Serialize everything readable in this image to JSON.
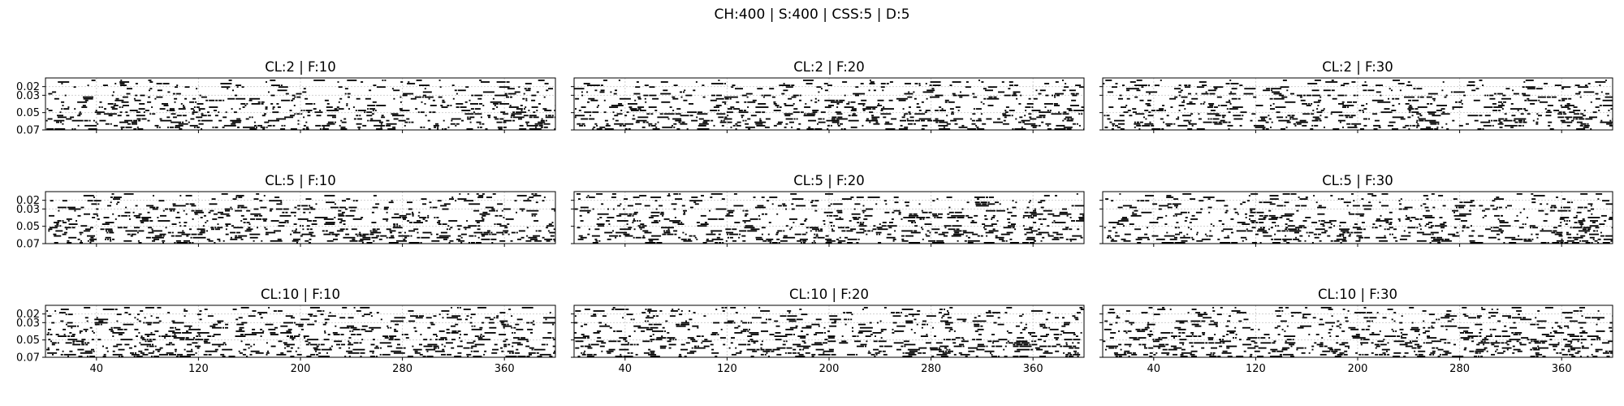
{
  "figure": {
    "suptitle": "CH:400 | S:400 | CSS:5 | D:5"
  },
  "chart_data": [
    {
      "type": "raster",
      "title": "CL:2 | F:10",
      "seed": 11,
      "xticks": [
        "40",
        "120",
        "200",
        "280",
        "360"
      ],
      "yticks": [
        "0.02",
        "0.03",
        "0.05",
        "0.07"
      ],
      "xlim": [
        0,
        400
      ],
      "ylim": [
        0.07,
        0.01
      ],
      "grid": true
    },
    {
      "type": "raster",
      "title": "CL:2 | F:20",
      "seed": 12,
      "xticks": [
        "40",
        "120",
        "200",
        "280",
        "360"
      ],
      "yticks": [
        "0.02",
        "0.03",
        "0.05",
        "0.07"
      ],
      "xlim": [
        0,
        400
      ],
      "ylim": [
        0.07,
        0.01
      ],
      "grid": true
    },
    {
      "type": "raster",
      "title": "CL:2 | F:30",
      "seed": 13,
      "xticks": [
        "40",
        "120",
        "200",
        "280",
        "360"
      ],
      "yticks": [
        "0.02",
        "0.03",
        "0.05",
        "0.07"
      ],
      "xlim": [
        0,
        400
      ],
      "ylim": [
        0.07,
        0.01
      ],
      "grid": true
    },
    {
      "type": "raster",
      "title": "CL:5 | F:10",
      "seed": 21,
      "xticks": [
        "40",
        "120",
        "200",
        "280",
        "360"
      ],
      "yticks": [
        "0.02",
        "0.03",
        "0.05",
        "0.07"
      ],
      "xlim": [
        0,
        400
      ],
      "ylim": [
        0.07,
        0.01
      ],
      "grid": true
    },
    {
      "type": "raster",
      "title": "CL:5 | F:20",
      "seed": 22,
      "xticks": [
        "40",
        "120",
        "200",
        "280",
        "360"
      ],
      "yticks": [
        "0.02",
        "0.03",
        "0.05",
        "0.07"
      ],
      "xlim": [
        0,
        400
      ],
      "ylim": [
        0.07,
        0.01
      ],
      "grid": true
    },
    {
      "type": "raster",
      "title": "CL:5 | F:30",
      "seed": 23,
      "xticks": [
        "40",
        "120",
        "200",
        "280",
        "360"
      ],
      "yticks": [
        "0.02",
        "0.03",
        "0.05",
        "0.07"
      ],
      "xlim": [
        0,
        400
      ],
      "ylim": [
        0.07,
        0.01
      ],
      "grid": true
    },
    {
      "type": "raster",
      "title": "CL:10 | F:10",
      "seed": 31,
      "xticks": [
        "40",
        "120",
        "200",
        "280",
        "360"
      ],
      "yticks": [
        "0.02",
        "0.03",
        "0.05",
        "0.07"
      ],
      "xlim": [
        0,
        400
      ],
      "ylim": [
        0.07,
        0.01
      ],
      "grid": true
    },
    {
      "type": "raster",
      "title": "CL:10 | F:20",
      "seed": 32,
      "xticks": [
        "40",
        "120",
        "200",
        "280",
        "360"
      ],
      "yticks": [
        "0.02",
        "0.03",
        "0.05",
        "0.07"
      ],
      "xlim": [
        0,
        400
      ],
      "ylim": [
        0.07,
        0.01
      ],
      "grid": true
    },
    {
      "type": "raster",
      "title": "CL:10 | F:30",
      "seed": 33,
      "xticks": [
        "40",
        "120",
        "200",
        "280",
        "360"
      ],
      "yticks": [
        "0.02",
        "0.03",
        "0.05",
        "0.07"
      ],
      "xlim": [
        0,
        400
      ],
      "ylim": [
        0.07,
        0.01
      ],
      "grid": true
    }
  ]
}
